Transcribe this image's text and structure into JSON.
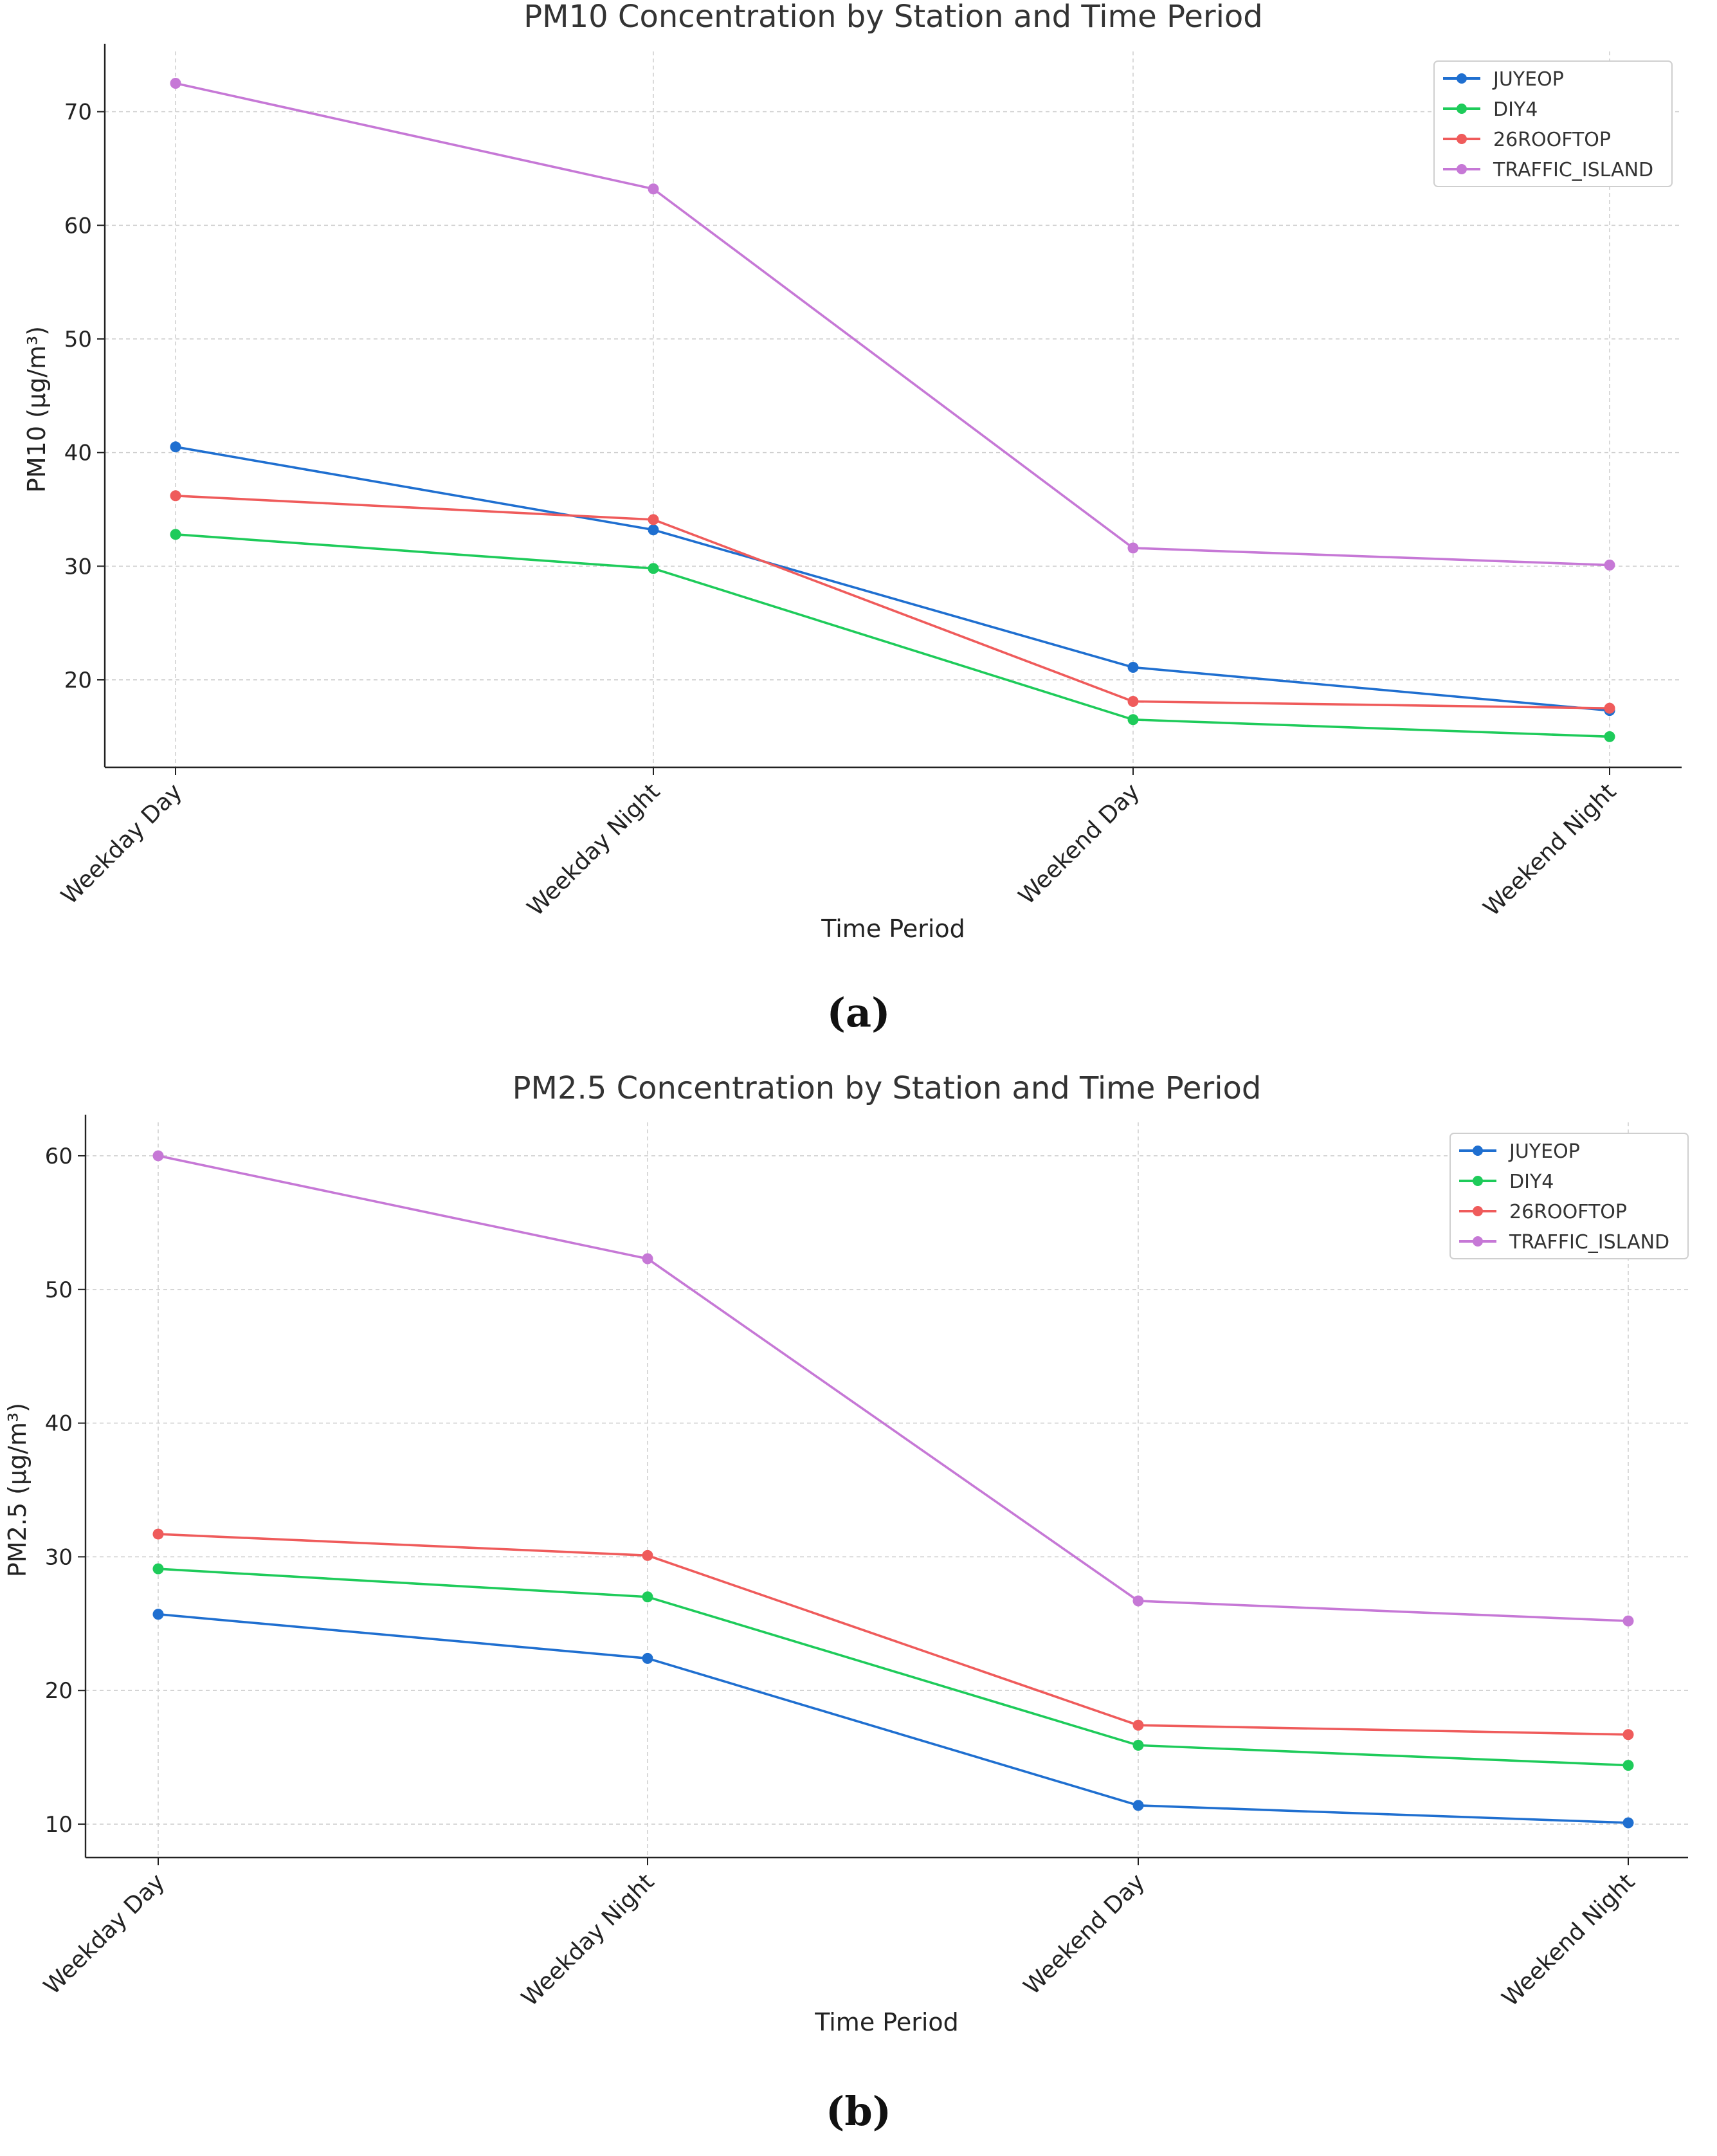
{
  "chart_data": [
    {
      "type": "line",
      "panel_label": "(a)",
      "title": "PM10 Concentration by Station and Time Period",
      "xlabel": "Time Period",
      "ylabel": "PM10 (µg/m³)",
      "categories": [
        "Weekday Day",
        "Weekday Night",
        "Weekend Day",
        "Weekend Night"
      ],
      "ylim": [
        12.3,
        75.3
      ],
      "yticks": [
        20,
        30,
        40,
        50,
        60,
        70
      ],
      "grid": true,
      "legend_position": "top-right",
      "series": [
        {
          "name": "JUYEOP",
          "color": "#1f6fd0",
          "values": [
            40.5,
            33.2,
            21.1,
            17.3
          ]
        },
        {
          "name": "DIY4",
          "color": "#1ecb5a",
          "values": [
            32.8,
            29.8,
            16.5,
            15.0
          ]
        },
        {
          "name": "26ROOFTOP",
          "color": "#ef5b5b",
          "values": [
            36.2,
            34.1,
            18.1,
            17.5
          ]
        },
        {
          "name": "TRAFFIC_ISLAND",
          "color": "#c678d6",
          "values": [
            72.5,
            63.2,
            31.6,
            30.1
          ]
        }
      ]
    },
    {
      "type": "line",
      "panel_label": "(b)",
      "title": "PM2.5 Concentration by Station and Time Period",
      "xlabel": "Time Period",
      "ylabel": "PM2.5 (µg/m³)",
      "categories": [
        "Weekday Day",
        "Weekday Night",
        "Weekend Day",
        "Weekend Night"
      ],
      "ylim": [
        7.5,
        62.5
      ],
      "yticks": [
        10,
        20,
        30,
        40,
        50,
        60
      ],
      "grid": true,
      "legend_position": "top-right",
      "series": [
        {
          "name": "JUYEOP",
          "color": "#1f6fd0",
          "values": [
            25.7,
            22.4,
            11.4,
            10.1
          ]
        },
        {
          "name": "DIY4",
          "color": "#1ecb5a",
          "values": [
            29.1,
            27.0,
            15.9,
            14.4
          ]
        },
        {
          "name": "26ROOFTOP",
          "color": "#ef5b5b",
          "values": [
            31.7,
            30.1,
            17.4,
            16.7
          ]
        },
        {
          "name": "TRAFFIC_ISLAND",
          "color": "#c678d6",
          "values": [
            60.0,
            52.3,
            26.7,
            25.2
          ]
        }
      ]
    }
  ]
}
